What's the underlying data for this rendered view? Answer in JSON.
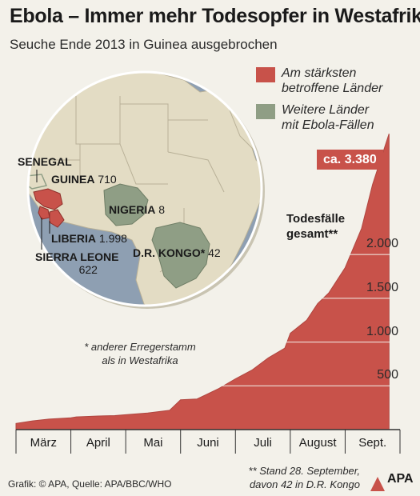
{
  "title": "Ebola – Immer mehr Todesopfer in Westafrika",
  "subtitle": "Seuche Ende 2013 in Guinea ausgebrochen",
  "legend": [
    {
      "label_line1": "Am stärksten",
      "label_line2": "betroffene Länder",
      "color": "#c8524a"
    },
    {
      "label_line1": "Weitere Länder",
      "label_line2": "mit Ebola-Fällen",
      "color": "#8f9e85"
    }
  ],
  "colors": {
    "area": "#c8524a",
    "ocean": "#8e9fb2",
    "land": "#e3dcc4",
    "outbreak": "#c8524a",
    "other": "#8f9e85",
    "background": "#f3f1ea"
  },
  "map": {
    "countries": [
      {
        "name": "SENEGAL",
        "value": ""
      },
      {
        "name": "GUINEA",
        "value": "710"
      },
      {
        "name": "LIBERIA",
        "value": "1.998"
      },
      {
        "name": "SIERRA LEONE",
        "value": "622"
      },
      {
        "name": "NIGERIA",
        "value": "8"
      },
      {
        "name": "D.R. KONGO*",
        "value": "42"
      }
    ]
  },
  "footnote1_line1": "* anderer Erregerstamm",
  "footnote1_line2": "als in Westafrika",
  "footnote2_line1": "** Stand 28. September,",
  "footnote2_line2": "davon 42 in D.R. Kongo",
  "source": "Grafik: © APA, Quelle: APA/BBC/WHO",
  "logo_text": "APA",
  "chart_data": {
    "type": "area",
    "title": "Ebola – Immer mehr Todesopfer in Westafrika",
    "ylabel_line1": "Todesfälle",
    "ylabel_line2": "gesamt**",
    "total_label": "ca. 3.380",
    "yticks": [
      500,
      1000,
      1500,
      2000
    ],
    "ytick_labels": [
      "500",
      "1.000",
      "1.500",
      "2.000"
    ],
    "ylim": [
      0,
      3400
    ],
    "months": [
      "März",
      "April",
      "Mai",
      "Juni",
      "Juli",
      "August",
      "Sept."
    ],
    "x": [
      0,
      0.3,
      0.6,
      1.0,
      1.1,
      1.5,
      1.8,
      2.0,
      2.4,
      2.8,
      3.0,
      3.3,
      3.7,
      4.0,
      4.3,
      4.6,
      4.9,
      5.0,
      5.3,
      5.5,
      5.7,
      6.0,
      6.3,
      6.5,
      6.8
    ],
    "values": [
      70,
      100,
      120,
      135,
      145,
      155,
      160,
      170,
      190,
      220,
      340,
      350,
      470,
      580,
      680,
      820,
      930,
      1100,
      1250,
      1440,
      1560,
      1850,
      2300,
      2800,
      3380
    ]
  }
}
